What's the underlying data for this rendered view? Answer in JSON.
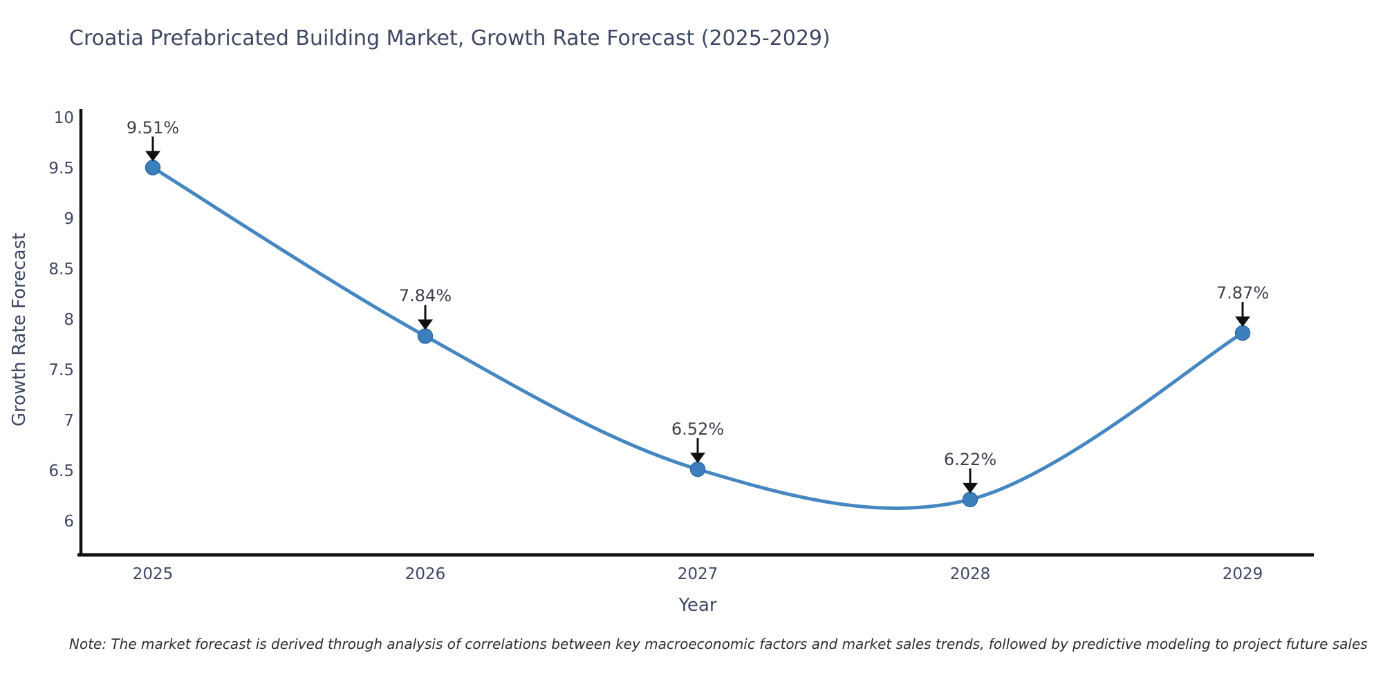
{
  "chart_data": {
    "type": "line",
    "title": "Croatia Prefabricated Building Market, Growth Rate Forecast (2025-2029)",
    "xlabel": "Year",
    "ylabel": "Growth Rate Forecast",
    "categories": [
      "2025",
      "2026",
      "2027",
      "2028",
      "2029"
    ],
    "series": [
      {
        "name": "Growth Rate Forecast",
        "values": [
          9.51,
          7.84,
          6.52,
          6.22,
          7.87
        ]
      }
    ],
    "point_labels": [
      "9.51%",
      "7.84%",
      "6.52%",
      "6.22%",
      "7.87%"
    ],
    "y_ticks": [
      "6",
      "6.5",
      "7",
      "7.5",
      "8",
      "8.5",
      "9",
      "9.5",
      "10"
    ],
    "ylim": [
      5.67,
      10
    ],
    "grid": false,
    "legend": "none",
    "curve_style": "spline",
    "marker_style": "circle",
    "colors": {
      "line": "#4587c1",
      "marker_fill": "#3c7fbd",
      "marker_edge": "#2e6ba6",
      "arrow": "#101010",
      "axis": "#111111",
      "title_text": "#3e4862",
      "tick_text": "#3e4862",
      "annotation_text": "#3c4049"
    }
  },
  "note": {
    "text": "Note: The market forecast is derived through analysis of correlations between key macroeconomic factors and market sales trends, followed by predictive modeling to project future sales"
  }
}
